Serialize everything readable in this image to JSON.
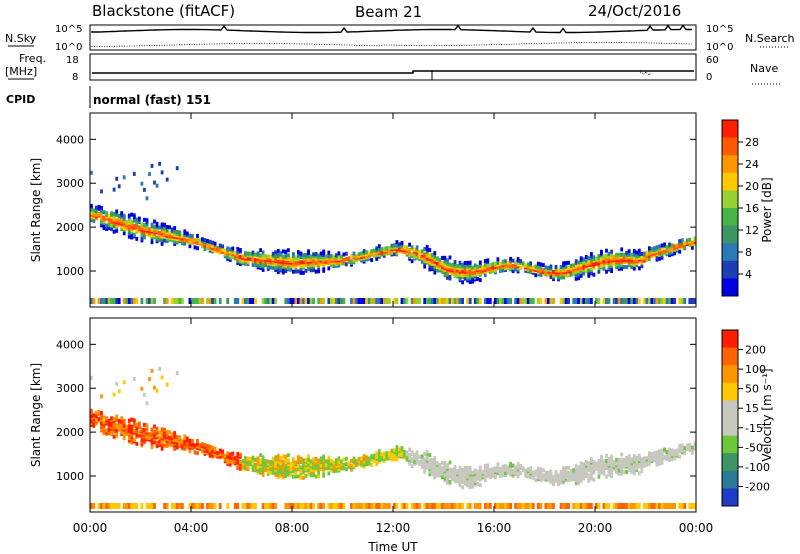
{
  "header": {
    "station": "Blackstone (fitACF)",
    "beam": "Beam 21",
    "date": "24/Oct/2016"
  },
  "summary_panels": {
    "nsky_label": "N.Sky",
    "nsearch_label": "N.Search",
    "freq_label_1": "Freq.",
    "freq_label_2": "[MHz]",
    "nave_label": "Nave",
    "cpid_label": "CPID",
    "cpid_value": "normal (fast) 151",
    "noise_tick_top": "10^5",
    "noise_tick_bottom": "10^0",
    "freq_tick_top": "18",
    "freq_tick_bottom": "8",
    "nave_tick_top": "60",
    "nave_tick_bottom": "0"
  },
  "colors": {
    "power_scale": [
      "#0000e6",
      "#1e3cb4",
      "#2a78b4",
      "#3c9664",
      "#46b446",
      "#96d232",
      "#ffc800",
      "#ff9600",
      "#ff5a00",
      "#ff1e00"
    ],
    "velocity_scale": [
      "#1e3cc8",
      "#287896",
      "#3c9664",
      "#6ec83c",
      "#c8c8c0",
      "#c8c8c0",
      "#ffc800",
      "#ff9600",
      "#ff6400",
      "#ff1e00"
    ]
  },
  "chart_data": [
    {
      "type": "heatmap",
      "name": "power",
      "xlabel": "Time UT",
      "ylabel": "Slant Range [km]",
      "colorbar_label": "Power [dB]",
      "colorbar_ticks": [
        "4",
        "8",
        "12",
        "16",
        "20",
        "24",
        "28"
      ],
      "x_ticks": [
        "00:00",
        "04:00",
        "08:00",
        "12:00",
        "16:00",
        "20:00",
        "00:00"
      ],
      "y_ticks": [
        "1000",
        "2000",
        "3000",
        "4000"
      ],
      "xlim": [
        0,
        24
      ],
      "ylim": [
        180,
        4600
      ],
      "echo_band": [
        {
          "t": 0.0,
          "range": 2300
        },
        {
          "t": 2.0,
          "range": 1950
        },
        {
          "t": 4.0,
          "range": 1700
        },
        {
          "t": 6.0,
          "range": 1300
        },
        {
          "t": 8.0,
          "range": 1200
        },
        {
          "t": 10.0,
          "range": 1250
        },
        {
          "t": 12.0,
          "range": 1500
        },
        {
          "t": 14.0,
          "range": 1100
        },
        {
          "t": 16.0,
          "range": 1050
        },
        {
          "t": 18.0,
          "range": 1050
        },
        {
          "t": 20.0,
          "range": 1100
        },
        {
          "t": 22.0,
          "range": 1350
        },
        {
          "t": 24.0,
          "range": 1700
        }
      ]
    },
    {
      "type": "heatmap",
      "name": "velocity",
      "xlabel": "Time UT",
      "ylabel": "Slant Range [km]",
      "colorbar_label": "Velocity [m s⁻¹]",
      "colorbar_ticks": [
        "200",
        "100",
        "50",
        "15",
        "-15",
        "-50",
        "-100",
        "-200"
      ],
      "x_ticks": [
        "00:00",
        "04:00",
        "08:00",
        "12:00",
        "16:00",
        "20:00",
        "00:00"
      ],
      "y_ticks": [
        "1000",
        "2000",
        "3000",
        "4000"
      ],
      "xlim": [
        0,
        24
      ],
      "ylim": [
        180,
        4600
      ]
    }
  ]
}
